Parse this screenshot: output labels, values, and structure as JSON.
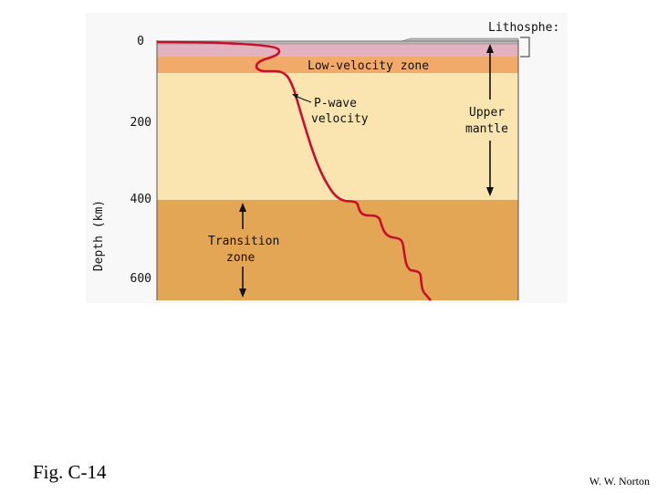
{
  "figure": {
    "y_axis_label": "Depth (km)",
    "y_ticks": [
      "0",
      "200",
      "400",
      "600"
    ],
    "labels": {
      "lithosphere": "Lithosphe:",
      "low_velocity_zone": "Low-velocity zone",
      "p_wave_line1": "P-wave",
      "p_wave_line2": "velocity",
      "upper_mantle_line1": "Upper",
      "upper_mantle_line2": "mantle",
      "transition_line1": "Transition",
      "transition_line2": "zone"
    },
    "colors": {
      "lithosphere_band": "#e2b3bf",
      "low_velocity_band": "#f2aa6a",
      "upper_mantle": "#fae4b0",
      "transition_zone": "#e3a655",
      "curve": "#c8102e",
      "crust": "#b9b9b9"
    }
  },
  "caption": "Fig. C-14",
  "credit": "W. W. Norton"
}
